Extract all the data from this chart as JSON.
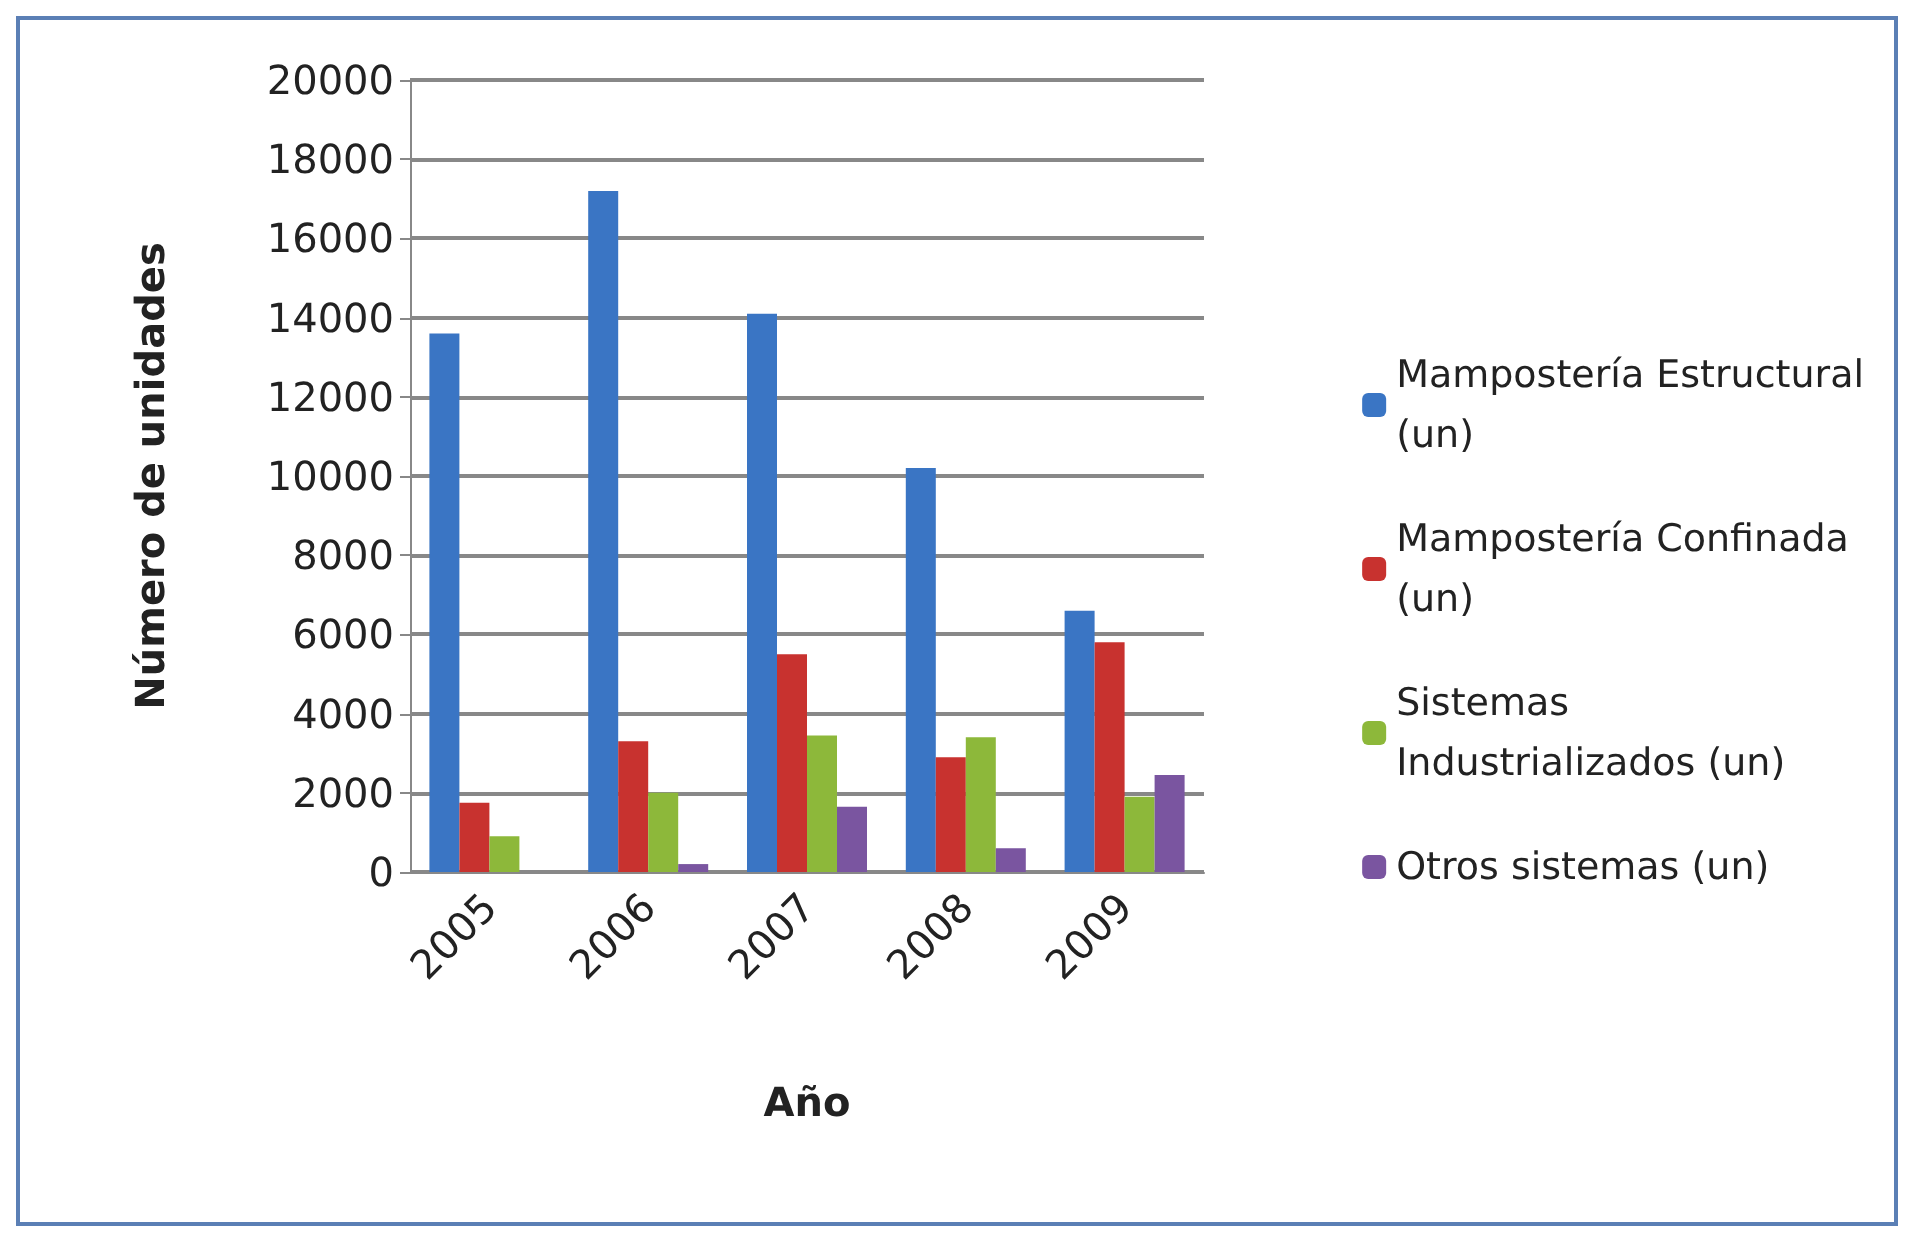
{
  "chart_data": {
    "type": "bar",
    "xlabel": "Año",
    "ylabel": "Número de unidades",
    "categories": [
      "2005",
      "2006",
      "2007",
      "2008",
      "2009"
    ],
    "series": [
      {
        "name": "Mampostería Estructural (un)",
        "color": "#3a75c4",
        "values": [
          13600,
          17200,
          14100,
          10200,
          6600
        ]
      },
      {
        "name": "Mampostería Confinada (un)",
        "color": "#c8322f",
        "values": [
          1750,
          3300,
          5500,
          2900,
          5800
        ]
      },
      {
        "name": "Sistemas Industrializados (un)",
        "color": "#8db83a",
        "values": [
          900,
          2000,
          3450,
          3400,
          1900
        ]
      },
      {
        "name": "Otros sistemas (un)",
        "color": "#7a55a0",
        "values": [
          0,
          200,
          1650,
          600,
          2450
        ]
      }
    ],
    "ylim": [
      0,
      20000
    ],
    "yticks": [
      0,
      2000,
      4000,
      6000,
      8000,
      10000,
      12000,
      14000,
      16000,
      18000,
      20000
    ],
    "grid": "y",
    "legend": "right"
  }
}
